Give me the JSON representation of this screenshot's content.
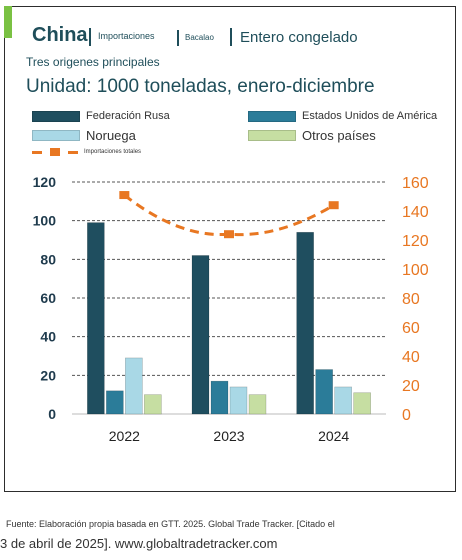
{
  "header": {
    "country": "China",
    "crumb1": "Importaciones",
    "crumb2": "Bacalao",
    "crumb3": "Entero congelado",
    "subtitle": "Tres origenes principales",
    "unit": "Unidad: 1000 toneladas, enero-diciembre"
  },
  "colors": {
    "accent": "#7ac143",
    "russia": "#1f4e5f",
    "usa": "#2b7c99",
    "norway": "#a9d8e6",
    "others": "#c6dea2",
    "total_line": "#e87722",
    "left_axis": "#1f3b4d",
    "right_axis": "#e87722"
  },
  "chart_data": {
    "type": "bar",
    "categories": [
      "2022",
      "2023",
      "2024"
    ],
    "series": [
      {
        "name": "Federación Rusa",
        "values": [
          99,
          82,
          94
        ]
      },
      {
        "name": "Estados Unidos de América",
        "values": [
          12,
          17,
          23
        ]
      },
      {
        "name": "Noruega",
        "values": [
          29,
          14,
          14
        ]
      },
      {
        "name": "Otros países",
        "values": [
          10,
          10,
          11
        ]
      }
    ],
    "line_series": {
      "name": "Importaciones totales",
      "values": [
        151,
        124,
        144
      ],
      "axis": "right"
    },
    "ylim_left": [
      0,
      120
    ],
    "yticks_left": [
      "0",
      "20",
      "40",
      "60",
      "80",
      "100",
      "120"
    ],
    "ylim_right": [
      0,
      160
    ],
    "yticks_right": [
      "0",
      "20",
      "40",
      "60",
      "80",
      "100",
      "120",
      "140",
      "160"
    ],
    "grid": "dashed horizontal",
    "legend_position": "top"
  },
  "source": {
    "line1": "Fuente: Elaboración propia basada en GTT. 2025. Global Trade Tracker. [Citado el",
    "line2": "3 de abril de 2025]. www.globaltradetracker.com"
  }
}
